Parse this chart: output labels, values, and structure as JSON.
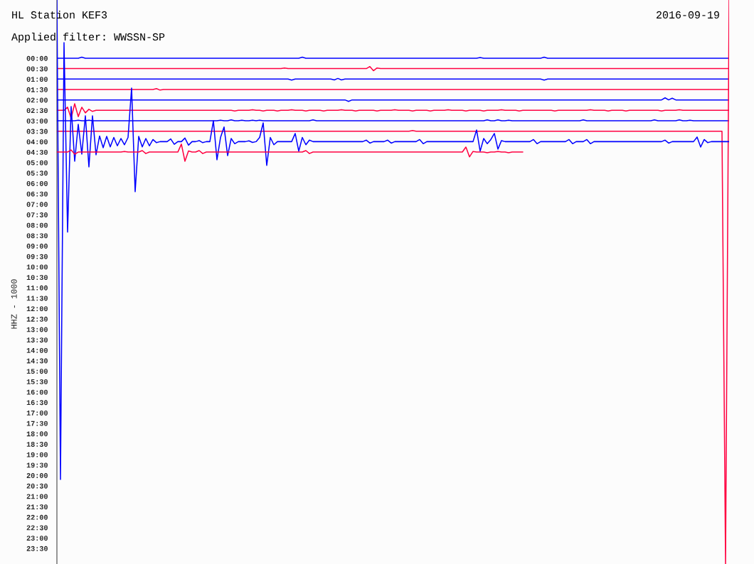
{
  "chart_data": {
    "type": "line",
    "title": "HL Station KEF3",
    "subtitle": "Applied filter: WWSSN-SP",
    "ylabel": "HHZ - 1000",
    "annotations": [
      "2016-09-19"
    ],
    "tick_labels": "y",
    "categories": [
      null,
      null,
      null,
      null,
      null,
      null,
      null,
      null,
      null,
      null,
      null,
      null,
      null,
      null,
      null,
      null,
      null,
      null,
      null,
      null,
      null,
      null,
      null,
      null,
      null,
      null,
      null,
      null,
      null,
      null,
      null,
      null,
      null,
      null,
      null,
      null,
      null,
      null,
      null,
      null,
      null,
      null,
      null,
      null,
      null,
      null,
      null,
      null,
      null,
      null,
      null,
      null,
      null,
      null,
      null,
      null,
      null,
      null,
      null,
      null,
      null,
      null,
      null,
      null,
      null,
      null,
      null,
      null,
      null,
      null,
      null,
      null,
      null,
      null,
      null,
      null,
      null,
      null,
      null,
      null,
      null,
      null,
      null,
      null,
      null,
      null,
      null,
      null,
      null,
      null,
      null,
      null,
      null,
      null,
      null,
      null,
      null,
      null,
      null,
      null,
      null,
      null,
      null,
      null,
      null,
      null,
      null,
      null,
      null,
      null,
      null,
      null,
      null,
      null,
      null,
      null,
      null,
      null,
      null,
      null,
      null,
      null,
      null,
      null,
      null,
      null,
      null,
      null,
      null,
      null,
      null,
      null,
      null,
      null,
      null,
      null,
      null,
      null,
      null,
      null,
      null,
      null,
      null,
      null,
      null,
      null,
      null,
      null,
      null,
      null,
      null,
      null,
      null,
      null,
      null,
      null,
      null,
      null,
      null,
      null,
      null,
      null,
      null,
      null,
      null,
      null,
      null,
      null,
      null,
      null,
      null,
      null,
      null,
      null,
      null,
      null,
      null,
      null,
      null,
      null,
      null,
      null,
      null,
      null,
      null,
      null,
      null,
      null,
      null,
      null
    ],
    "ylim": [
      24.25,
      -2.79
    ],
    "yticks": [
      {
        "value": 0,
        "label": "00:00"
      },
      {
        "value": 0.5,
        "label": "00:30"
      },
      {
        "value": 1,
        "label": "01:00"
      },
      {
        "value": 1.5,
        "label": "01:30"
      },
      {
        "value": 2,
        "label": "02:00"
      },
      {
        "value": 2.5,
        "label": "02:30"
      },
      {
        "value": 3,
        "label": "03:00"
      },
      {
        "value": 3.5,
        "label": "03:30"
      },
      {
        "value": 4,
        "label": "04:00"
      },
      {
        "value": 4.5,
        "label": "04:30"
      },
      {
        "value": 5,
        "label": "05:00"
      },
      {
        "value": 5.5,
        "label": "05:30"
      },
      {
        "value": 6,
        "label": "06:00"
      },
      {
        "value": 6.5,
        "label": "06:30"
      },
      {
        "value": 7,
        "label": "07:00"
      },
      {
        "value": 7.5,
        "label": "07:30"
      },
      {
        "value": 8,
        "label": "08:00"
      },
      {
        "value": 8.5,
        "label": "08:30"
      },
      {
        "value": 9,
        "label": "09:00"
      },
      {
        "value": 9.5,
        "label": "09:30"
      },
      {
        "value": 10,
        "label": "10:00"
      },
      {
        "value": 10.5,
        "label": "10:30"
      },
      {
        "value": 11,
        "label": "11:00"
      },
      {
        "value": 11.5,
        "label": "11:30"
      },
      {
        "value": 12,
        "label": "12:00"
      },
      {
        "value": 12.5,
        "label": "12:30"
      },
      {
        "value": 13,
        "label": "13:00"
      },
      {
        "value": 13.5,
        "label": "13:30"
      },
      {
        "value": 14,
        "label": "14:00"
      },
      {
        "value": 14.5,
        "label": "14:30"
      },
      {
        "value": 15,
        "label": "15:00"
      },
      {
        "value": 15.5,
        "label": "15:30"
      },
      {
        "value": 16,
        "label": "16:00"
      },
      {
        "value": 16.5,
        "label": "16:30"
      },
      {
        "value": 17,
        "label": "17:00"
      },
      {
        "value": 17.5,
        "label": "17:30"
      },
      {
        "value": 18,
        "label": "18:00"
      },
      {
        "value": 18.5,
        "label": "18:30"
      },
      {
        "value": 19,
        "label": "19:00"
      },
      {
        "value": 19.5,
        "label": "19:30"
      },
      {
        "value": 20,
        "label": "20:00"
      },
      {
        "value": 20.5,
        "label": "20:30"
      },
      {
        "value": 21,
        "label": "21:00"
      },
      {
        "value": 21.5,
        "label": "21:30"
      },
      {
        "value": 22,
        "label": "22:00"
      },
      {
        "value": 22.5,
        "label": "22:30"
      },
      {
        "value": 23,
        "label": "23:00"
      },
      {
        "value": 23.5,
        "label": "23:30"
      }
    ],
    "series": [
      {
        "color": "#0000ff",
        "values": [
          0,
          0,
          0,
          0,
          0,
          0,
          0,
          -0.05,
          0,
          0,
          0,
          0,
          0,
          0,
          0,
          0,
          0,
          0,
          0,
          0,
          0,
          0,
          0,
          0,
          0,
          0,
          0,
          0,
          0,
          0,
          0,
          0,
          0,
          0,
          0,
          0,
          0,
          0,
          0,
          0,
          0,
          0,
          0,
          0,
          0,
          0,
          0,
          0,
          0,
          0,
          0,
          0,
          0,
          0,
          0,
          0,
          0,
          0,
          0,
          0,
          0,
          0,
          0,
          0,
          0,
          0,
          0,
          0,
          0,
          -0.05,
          0,
          0,
          0,
          0,
          0,
          0,
          0,
          0,
          0,
          0,
          0,
          0,
          0,
          0,
          0,
          0,
          0,
          0,
          0,
          0,
          0,
          0,
          0,
          0,
          0,
          0,
          0,
          0,
          0,
          0,
          0,
          0,
          0,
          0,
          0,
          0,
          0,
          0,
          0,
          0,
          0,
          0,
          0,
          0,
          0,
          0,
          0,
          0,
          0,
          -0.03,
          0,
          0,
          0,
          0,
          0,
          0,
          0,
          0,
          0,
          0,
          0,
          0,
          0,
          0,
          0,
          0,
          0,
          -0.05,
          0,
          0,
          0,
          0,
          0,
          0,
          0,
          0,
          0,
          0,
          0,
          0,
          0,
          0,
          0,
          0,
          0,
          0,
          0,
          0,
          0,
          0,
          0,
          0,
          0,
          0,
          0,
          0,
          0,
          0,
          0,
          0,
          0,
          0,
          0,
          0,
          0,
          0,
          0,
          0,
          0,
          0,
          0,
          0,
          0,
          0,
          0,
          0,
          0,
          0,
          0,
          0
        ]
      },
      {
        "color": "#ff0040",
        "values": [
          0.5,
          0.5,
          0.5,
          0.5,
          0.5,
          0.5,
          0.5,
          0.5,
          0.5,
          0.5,
          0.5,
          0.5,
          0.5,
          0.5,
          0.5,
          0.5,
          0.5,
          0.5,
          0.5,
          0.5,
          0.5,
          0.5,
          0.5,
          0.5,
          0.5,
          0.5,
          0.5,
          0.5,
          0.5,
          0.5,
          0.5,
          0.5,
          0.5,
          0.5,
          0.5,
          0.5,
          0.5,
          0.5,
          0.5,
          0.5,
          0.5,
          0.5,
          0.5,
          0.5,
          0.5,
          0.5,
          0.5,
          0.5,
          0.5,
          0.5,
          0.5,
          0.5,
          0.5,
          0.5,
          0.5,
          0.5,
          0.5,
          0.5,
          0.5,
          0.5,
          0.5,
          0.5,
          0.5,
          0.5,
          0.47,
          0.5,
          0.5,
          0.5,
          0.5,
          0.5,
          0.5,
          0.5,
          0.5,
          0.5,
          0.5,
          0.5,
          0.5,
          0.5,
          0.5,
          0.5,
          0.5,
          0.5,
          0.5,
          0.5,
          0.5,
          0.5,
          0.5,
          0.5,
          0.4,
          0.6,
          0.47,
          0.5,
          0.5,
          0.5,
          0.5,
          0.5,
          0.5,
          0.5,
          0.5,
          0.5,
          0.5,
          0.5,
          0.5,
          0.5,
          0.5,
          0.5,
          0.5,
          0.5,
          0.5,
          0.5,
          0.5,
          0.5,
          0.5,
          0.5,
          0.5,
          0.5,
          0.5,
          0.5,
          0.5,
          0.5,
          0.5,
          0.5,
          0.5,
          0.5,
          0.5,
          0.5,
          0.5,
          0.5,
          0.5,
          0.5,
          0.5,
          0.5,
          0.5,
          0.5,
          0.5,
          0.5,
          0.5,
          0.5,
          0.5,
          0.5,
          0.5,
          0.5,
          0.5,
          0.5,
          0.5,
          0.5,
          0.5,
          0.5,
          0.5,
          0.5,
          0.5,
          0.5,
          0.5,
          0.5,
          0.5,
          0.5,
          0.5,
          0.5,
          0.5,
          0.5,
          0.5,
          0.5,
          0.5,
          0.5,
          0.5,
          0.5,
          0.5,
          0.5,
          0.5,
          0.5,
          0.5,
          0.5,
          0.5,
          0.5,
          0.5,
          0.5,
          0.5,
          0.5,
          0.5,
          0.5,
          0.5,
          0.5,
          0.5,
          0.5,
          0.5,
          0.5,
          0.5,
          0.5,
          0.5,
          0.5
        ]
      },
      {
        "color": "#0000ff",
        "values": [
          1,
          1,
          1,
          1,
          1,
          1,
          1,
          1,
          1,
          1,
          1,
          1,
          1,
          1,
          1,
          1,
          1,
          1,
          1,
          1,
          1,
          1,
          1,
          1,
          1,
          1,
          1,
          1,
          1,
          1,
          1,
          1,
          1,
          1,
          1,
          1,
          1,
          1,
          1,
          1,
          1,
          1,
          1,
          1,
          1,
          1,
          1,
          1,
          1,
          1,
          1,
          1,
          1,
          1,
          1,
          1,
          1,
          1,
          1,
          1,
          1,
          1,
          1,
          1,
          1,
          1,
          1.05,
          1,
          1,
          1,
          1,
          1,
          1,
          1,
          1,
          1,
          1,
          1,
          1.04,
          0.97,
          1.04,
          1,
          1,
          1,
          1,
          1,
          1,
          1,
          1,
          1,
          1,
          1,
          1,
          1,
          1,
          1,
          1,
          1,
          1,
          1,
          1,
          1,
          1,
          1,
          1,
          1,
          1,
          1,
          1,
          1,
          1,
          1,
          1,
          1,
          1,
          1,
          1,
          1,
          1,
          1,
          1,
          1,
          1,
          1,
          1,
          1,
          1,
          1,
          1,
          1,
          1,
          1,
          1,
          1,
          1,
          1,
          1,
          1.05,
          1,
          1,
          1,
          1,
          1,
          1,
          1,
          1,
          1,
          1,
          1,
          1,
          1,
          1,
          1,
          1,
          1,
          1,
          1,
          1,
          1,
          1,
          1,
          1,
          1,
          1,
          1,
          1,
          1,
          1,
          1,
          1,
          1,
          1,
          1,
          1,
          1,
          1,
          1,
          1,
          1,
          1,
          1,
          1,
          1,
          1,
          1,
          1,
          1,
          1,
          1,
          1
        ]
      },
      {
        "color": "#ff0040",
        "values": [
          1.5,
          1.5,
          1.5,
          1.5,
          1.5,
          1.5,
          1.5,
          1.5,
          1.5,
          1.5,
          1.5,
          1.5,
          1.5,
          1.5,
          1.5,
          1.5,
          1.5,
          1.5,
          1.5,
          1.5,
          1.5,
          1.5,
          1.5,
          1.5,
          1.5,
          1.5,
          1.5,
          1.5,
          1.46,
          1.53,
          1.5,
          1.5,
          1.5,
          1.5,
          1.5,
          1.5,
          1.5,
          1.5,
          1.5,
          1.5,
          1.5,
          1.5,
          1.5,
          1.5,
          1.5,
          1.5,
          1.5,
          1.5,
          1.5,
          1.5,
          1.5,
          1.5,
          1.5,
          1.5,
          1.5,
          1.5,
          1.5,
          1.5,
          1.5,
          1.5,
          1.5,
          1.5,
          1.5,
          1.5,
          1.5,
          1.5,
          1.5,
          1.5,
          1.5,
          1.5,
          1.5,
          1.5,
          1.5,
          1.5,
          1.5,
          1.5,
          1.5,
          1.5,
          1.5,
          1.5,
          1.5,
          1.5,
          1.5,
          1.5,
          1.5,
          1.5,
          1.5,
          1.5,
          1.5,
          1.5,
          1.5,
          1.5,
          1.5,
          1.5,
          1.5,
          1.5,
          1.5,
          1.5,
          1.5,
          1.5,
          1.5,
          1.5,
          1.5,
          1.5,
          1.5,
          1.5,
          1.5,
          1.5,
          1.5,
          1.5,
          1.5,
          1.5,
          1.5,
          1.5,
          1.5,
          1.5,
          1.5,
          1.5,
          1.5,
          1.5,
          1.5,
          1.5,
          1.5,
          1.5,
          1.5,
          1.5,
          1.5,
          1.5,
          1.5,
          1.5,
          1.5,
          1.5,
          1.5,
          1.5,
          1.5,
          1.5,
          1.5,
          1.5,
          1.5,
          1.5,
          1.5,
          1.5,
          1.5,
          1.5,
          1.5,
          1.5,
          1.5,
          1.5,
          1.5,
          1.5,
          1.5,
          1.5,
          1.5,
          1.5,
          1.5,
          1.5,
          1.5,
          1.5,
          1.5,
          1.5,
          1.5,
          1.5,
          1.5,
          1.5,
          1.5,
          1.5,
          1.5,
          1.5,
          1.5,
          1.5,
          1.5,
          1.5,
          1.5,
          1.5,
          1.5,
          1.5,
          1.5,
          1.5,
          1.5,
          1.5,
          1.5,
          1.5,
          1.5,
          1.5,
          1.5,
          1.5,
          1.5,
          1.5,
          1.5,
          1.5
        ]
      },
      {
        "color": "#0000ff",
        "values": [
          2,
          2,
          2,
          2,
          2,
          2,
          2,
          2,
          2,
          2,
          2,
          2,
          2,
          2,
          2,
          2,
          2,
          2,
          2,
          2,
          2,
          2,
          2,
          2,
          2,
          2,
          2,
          2,
          2,
          2,
          2,
          2,
          2,
          2,
          2,
          2,
          2,
          2,
          2,
          2,
          2,
          2,
          2,
          2,
          2,
          2,
          2,
          2,
          2,
          2,
          2,
          2,
          2,
          2,
          2,
          2,
          2,
          2,
          2,
          2,
          2,
          2,
          2,
          2,
          2,
          2,
          2,
          2,
          2,
          2,
          2,
          2,
          2,
          2,
          2,
          2,
          2,
          2,
          2,
          2,
          2,
          2,
          2.07,
          2,
          2,
          2,
          2,
          2,
          2,
          2,
          2,
          2,
          2,
          2,
          2,
          2,
          2,
          2,
          2,
          2,
          2,
          2,
          2,
          2,
          2,
          2,
          2,
          2,
          2,
          2,
          2,
          2,
          2,
          2,
          2,
          2,
          2,
          2,
          2,
          2,
          2,
          2,
          2,
          2,
          2,
          2,
          2,
          2,
          2,
          2,
          2,
          2,
          2,
          2,
          2,
          2,
          2,
          2,
          2,
          2,
          2,
          2,
          2,
          2,
          2,
          2,
          2,
          2,
          2,
          2,
          2,
          2,
          2,
          2,
          2,
          2,
          2,
          2,
          2,
          2,
          2,
          2,
          2,
          2,
          2,
          2,
          2,
          2,
          2,
          2,
          2,
          1.9,
          2,
          1.92,
          2,
          2,
          2,
          2,
          2,
          2,
          2,
          2,
          2,
          2,
          2,
          2,
          2,
          2,
          2,
          2
        ]
      },
      {
        "color": "#ff0040",
        "values": [
          2.5,
          2.5,
          2.5,
          2.35,
          2.88,
          2.18,
          2.8,
          2.35,
          2.62,
          2.45,
          2.55,
          2.5,
          2.5,
          2.5,
          2.5,
          2.5,
          2.5,
          2.5,
          2.5,
          2.5,
          2.5,
          2.5,
          2.5,
          2.5,
          2.5,
          2.5,
          2.5,
          2.5,
          2.5,
          2.5,
          2.5,
          2.5,
          2.5,
          2.5,
          2.5,
          2.5,
          2.5,
          2.5,
          2.5,
          2.5,
          2.5,
          2.5,
          2.5,
          2.5,
          2.5,
          2.5,
          2.5,
          2.5,
          2.5,
          2.5,
          2.53,
          2.5,
          2.5,
          2.5,
          2.5,
          2.47,
          2.5,
          2.5,
          2.53,
          2.5,
          2.5,
          2.5,
          2.53,
          2.5,
          2.5,
          2.5,
          2.47,
          2.5,
          2.5,
          2.5,
          2.53,
          2.5,
          2.5,
          2.5,
          2.5,
          2.53,
          2.5,
          2.5,
          2.5,
          2.5,
          2.47,
          2.5,
          2.5,
          2.5,
          2.53,
          2.5,
          2.5,
          2.5,
          2.5,
          2.5,
          2.53,
          2.5,
          2.5,
          2.5,
          2.5,
          2.47,
          2.5,
          2.5,
          2.5,
          2.5,
          2.53,
          2.5,
          2.5,
          2.5,
          2.5,
          2.53,
          2.5,
          2.5,
          2.5,
          2.5,
          2.47,
          2.5,
          2.5,
          2.5,
          2.5,
          2.53,
          2.5,
          2.5,
          2.5,
          2.5,
          2.53,
          2.5,
          2.5,
          2.5,
          2.5,
          2.47,
          2.5,
          2.5,
          2.5,
          2.5,
          2.53,
          2.5,
          2.5,
          2.5,
          2.5,
          2.5,
          2.5,
          2.5,
          2.5,
          2.5,
          2.53,
          2.5,
          2.5,
          2.5,
          2.5,
          2.5,
          2.5,
          2.5,
          2.5,
          2.5,
          2.47,
          2.5,
          2.5,
          2.5,
          2.5,
          2.53,
          2.5,
          2.5,
          2.5,
          2.5,
          2.53,
          2.5,
          2.5,
          2.5,
          2.5,
          2.5,
          2.5,
          2.5,
          2.5,
          2.5,
          2.53,
          2.5,
          2.5,
          2.5,
          2.5,
          2.47,
          2.5,
          2.5,
          2.5,
          2.5,
          2.5,
          2.5,
          2.5,
          2.5,
          2.5,
          2.5,
          2.5,
          2.5,
          2.5,
          2.5
        ]
      },
      {
        "color": "#0000ff",
        "values": [
          3,
          3,
          3,
          3,
          3,
          3,
          2.97,
          3,
          3,
          2.97,
          3,
          3,
          3,
          3,
          3,
          3,
          3,
          3,
          3,
          3,
          3,
          3,
          3,
          3,
          3,
          3,
          3,
          3,
          3,
          3,
          3,
          3,
          3,
          3,
          3,
          3,
          3,
          3,
          3,
          3,
          3,
          3,
          3,
          3,
          3,
          3,
          2.97,
          3,
          3,
          2.96,
          3,
          3,
          2.97,
          3,
          3,
          2.97,
          3,
          2.97,
          3,
          3,
          3,
          3,
          3,
          3,
          3,
          3,
          3,
          3,
          3,
          3,
          3,
          3,
          2.96,
          3,
          3,
          3,
          3,
          3,
          3,
          3,
          3,
          3,
          3,
          3,
          3,
          3,
          3,
          3,
          3,
          3,
          3,
          3,
          3,
          3,
          3,
          3,
          3,
          3,
          3,
          3,
          3,
          3,
          3,
          3,
          3,
          3,
          3,
          3,
          3,
          3,
          3,
          3,
          3,
          3,
          3,
          3,
          3,
          3,
          3,
          3,
          3,
          2.96,
          3,
          3,
          2.96,
          3,
          3,
          2.97,
          3,
          3,
          3,
          3,
          3,
          3,
          3,
          3,
          3,
          3,
          3,
          3,
          3,
          3,
          3,
          3,
          3,
          3,
          3,
          3,
          2.96,
          3,
          3,
          3,
          3,
          3,
          3,
          3,
          3,
          3,
          3,
          3,
          3,
          3,
          3,
          3,
          3,
          3,
          3,
          3,
          2.96,
          3,
          3,
          3,
          3,
          3,
          3,
          2.96,
          3,
          3,
          2.97,
          3,
          3,
          3,
          3,
          3,
          3,
          3,
          3,
          3,
          3,
          3
        ]
      },
      {
        "color": "#ff0040",
        "values": [
          3.5,
          3.5,
          3.5,
          3.5,
          3.5,
          3.5,
          3.5,
          3.5,
          3.5,
          3.5,
          3.5,
          3.5,
          3.5,
          3.5,
          3.5,
          3.5,
          3.5,
          3.5,
          3.5,
          3.5,
          3.5,
          3.5,
          3.5,
          3.5,
          3.5,
          3.5,
          3.5,
          3.5,
          3.5,
          3.5,
          3.5,
          3.5,
          3.5,
          3.5,
          3.5,
          3.5,
          3.5,
          3.5,
          3.5,
          3.5,
          3.5,
          3.5,
          3.5,
          3.5,
          3.5,
          3.5,
          3.5,
          3.5,
          3.5,
          3.5,
          3.5,
          3.5,
          3.5,
          3.5,
          3.5,
          3.5,
          3.5,
          3.5,
          3.5,
          3.5,
          3.5,
          3.5,
          3.5,
          3.5,
          3.5,
          3.5,
          3.5,
          3.5,
          3.5,
          3.5,
          3.5,
          3.5,
          3.5,
          3.5,
          3.5,
          3.5,
          3.5,
          3.5,
          3.5,
          3.5,
          3.5,
          3.5,
          3.5,
          3.5,
          3.5,
          3.5,
          3.5,
          3.5,
          3.5,
          3.5,
          3.5,
          3.5,
          3.5,
          3.5,
          3.5,
          3.5,
          3.5,
          3.5,
          3.5,
          3.5,
          3.47,
          3.5,
          3.5,
          3.5,
          3.5,
          3.5,
          3.5,
          3.5,
          3.5,
          3.5,
          3.5,
          3.5,
          3.5,
          3.5,
          3.5,
          3.5,
          3.5,
          3.5,
          3.5,
          3.5,
          3.5,
          3.5,
          3.5,
          3.5,
          3.5,
          3.5,
          3.5,
          3.5,
          3.5,
          3.5,
          3.5,
          3.5,
          3.5,
          3.5,
          3.5,
          3.5,
          3.5,
          3.5,
          3.5,
          3.5,
          3.5,
          3.5,
          3.5,
          3.5,
          3.5,
          3.5,
          3.5,
          3.5,
          3.5,
          3.5,
          3.5,
          3.5,
          3.5,
          3.5,
          3.5,
          3.5,
          3.5,
          3.5,
          3.5,
          3.5,
          3.5,
          3.5,
          3.5,
          3.5,
          3.5,
          3.5,
          3.5,
          3.5,
          3.5,
          3.5,
          3.5,
          3.5,
          3.5,
          3.5,
          3.5,
          3.5,
          3.5,
          3.5,
          3.5,
          3.5,
          3.5,
          3.5,
          3.5,
          3.5,
          3.5,
          3.5,
          3.5,
          3.5,
          24.25,
          -2.79
        ]
      },
      {
        "color": "#0000ff",
        "values": [
          -2.79,
          20.2,
          -0.75,
          8.34,
          2.32,
          4.94,
          3.17,
          4.6,
          2.76,
          5.21,
          2.76,
          4.63,
          3.73,
          4.29,
          3.75,
          4.25,
          3.8,
          4.2,
          3.85,
          4.15,
          3.8,
          1.43,
          6.4,
          3.75,
          4.25,
          3.85,
          4.2,
          3.9,
          4.05,
          4,
          4,
          4,
          3.87,
          4.13,
          4,
          4,
          3.83,
          4.17,
          4,
          4,
          3.95,
          4.05,
          4,
          4,
          3,
          4.87,
          3.8,
          3.3,
          4.67,
          3.85,
          4.1,
          4,
          4,
          4,
          3.96,
          4.04,
          4,
          3.8,
          3.1,
          5.14,
          3.8,
          4.15,
          4,
          4,
          4,
          4,
          4,
          3.61,
          4.46,
          3.8,
          4.15,
          3.93,
          4,
          4,
          4,
          4,
          4,
          4,
          4,
          4,
          4,
          4,
          4,
          4,
          4,
          4,
          4,
          3.93,
          4.07,
          4,
          4,
          4,
          4,
          3.93,
          4.07,
          4,
          4,
          4,
          4,
          4,
          4,
          4,
          3.9,
          4.1,
          4,
          4,
          4,
          4,
          4,
          4,
          4,
          4,
          4,
          4,
          4,
          4,
          4,
          4,
          3.44,
          4.46,
          3.85,
          4.1,
          3.9,
          3.61,
          4.36,
          3.95,
          4,
          4,
          4,
          4,
          4,
          4,
          4,
          4,
          3.9,
          4.1,
          4,
          4,
          4,
          4,
          4,
          4,
          4,
          4,
          3.9,
          4.1,
          4,
          4,
          4,
          3.9,
          4.1,
          4,
          4,
          4,
          4,
          4,
          4,
          4,
          4,
          4,
          4,
          4,
          4,
          4,
          4,
          4,
          4,
          4,
          4,
          4,
          4,
          3.93,
          4.07,
          4,
          4,
          4,
          4,
          4,
          4,
          4,
          3.78,
          4.26,
          3.9,
          4.05,
          4,
          4,
          4,
          4,
          4,
          4
        ]
      },
      {
        "color": "#ff0040",
        "values": [
          4.5,
          4.5,
          4.5,
          4.5,
          4.4,
          4.6,
          4.5,
          4.5,
          4.5,
          4.5,
          4.5,
          4.5,
          4.5,
          4.5,
          4.5,
          4.5,
          4.5,
          4.5,
          4.5,
          4.47,
          4.5,
          4.5,
          4.5,
          4.5,
          4.43,
          4.57,
          4.5,
          4.5,
          4.5,
          4.5,
          4.5,
          4.5,
          4.5,
          4.5,
          4.5,
          4.12,
          4.94,
          4.45,
          4.5,
          4.5,
          4.43,
          4.57,
          4.5,
          4.5,
          4.5,
          4.5,
          4.5,
          4.5,
          4.5,
          4.5,
          4.5,
          4.5,
          4.5,
          4.5,
          4.5,
          4.5,
          4.5,
          4.5,
          4.5,
          4.5,
          4.5,
          4.5,
          4.5,
          4.5,
          4.5,
          4.5,
          4.5,
          4.5,
          4.5,
          4.5,
          4.43,
          4.57,
          4.5,
          4.5,
          4.5,
          4.5,
          4.5,
          4.5,
          4.5,
          4.5,
          4.5,
          4.5,
          4.5,
          4.5,
          4.5,
          4.5,
          4.5,
          4.5,
          4.5,
          4.5,
          4.5,
          4.5,
          4.5,
          4.5,
          4.5,
          4.5,
          4.5,
          4.5,
          4.5,
          4.5,
          4.5,
          4.5,
          4.5,
          4.5,
          4.5,
          4.5,
          4.5,
          4.5,
          4.5,
          4.5,
          4.5,
          4.5,
          4.5,
          4.5,
          4.5,
          4.26,
          4.73,
          4.47,
          4.5,
          4.5,
          4.5,
          4.53,
          4.5,
          4.5,
          4.47,
          4.5,
          4.5,
          4.53,
          4.5,
          4.5,
          4.5,
          4.5,
          null,
          null,
          null,
          null,
          null,
          null,
          null,
          null,
          null,
          null,
          null,
          null,
          null,
          null,
          null,
          null,
          null,
          null,
          null,
          null,
          null,
          null,
          null,
          null,
          null,
          null,
          null,
          null,
          null,
          null,
          null,
          null,
          null,
          null,
          null,
          null,
          null,
          null,
          null,
          null,
          null,
          null,
          null,
          null,
          null,
          null,
          null,
          null,
          null,
          null,
          null,
          null,
          null,
          null,
          null,
          null,
          null,
          null
        ]
      }
    ]
  }
}
